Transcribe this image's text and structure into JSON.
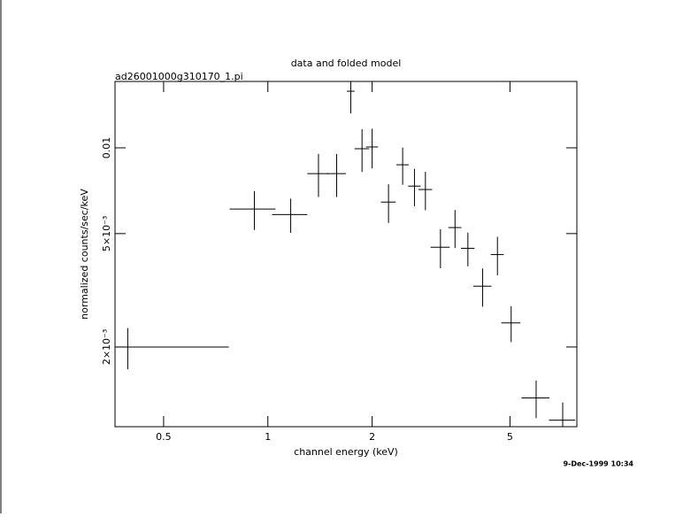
{
  "chart_data": {
    "type": "errorbar",
    "title": "data and folded model",
    "subtitle": "ad26001000g310170_1.pi",
    "xlabel": "channel energy (keV)",
    "ylabel": "normalized counts/sec/keV",
    "timestamp": "9-Dec-1999 10:34",
    "xlog": true,
    "ylog": true,
    "color": "#000000",
    "xlim": [
      0.362,
      7.8
    ],
    "ylim": [
      0.00105,
      0.0171
    ],
    "xticks": [
      0.5,
      1,
      2,
      5
    ],
    "yticks": [
      {
        "value": 0.002,
        "label": "2×10⁻³"
      },
      {
        "value": 0.005,
        "label": "5×10⁻³"
      },
      0.01
    ],
    "x": [
      0.394,
      0.914,
      1.164,
      1.4,
      1.58,
      1.735,
      1.87,
      2.0,
      2.23,
      2.45,
      2.65,
      2.85,
      3.15,
      3.47,
      3.78,
      4.17,
      4.6,
      5.04,
      5.95,
      7.1
    ],
    "xerr": [
      0.377,
      0.138,
      0.136,
      0.1,
      0.1,
      0.045,
      0.09,
      0.08,
      0.11,
      0.1,
      0.11,
      0.13,
      0.2,
      0.15,
      0.17,
      0.25,
      0.2,
      0.32,
      0.55,
      0.62
    ],
    "values": [
      0.002,
      0.0061,
      0.00583,
      0.00812,
      0.00812,
      0.0158,
      0.00993,
      0.01007,
      0.00645,
      0.00872,
      0.00734,
      0.00714,
      0.00448,
      0.00525,
      0.00444,
      0.00327,
      0.00422,
      0.00243,
      0.001325,
      0.001107
    ],
    "yerr": [
      0.00033,
      0.00095,
      0.0008,
      0.0014,
      0.0014,
      0.0026,
      0.0017,
      0.0016,
      0.001,
      0.0013,
      0.0011,
      0.0011,
      0.0007,
      0.0008,
      0.0006,
      0.0005,
      0.00065,
      0.00035,
      0.0002,
      0.00017
    ]
  }
}
